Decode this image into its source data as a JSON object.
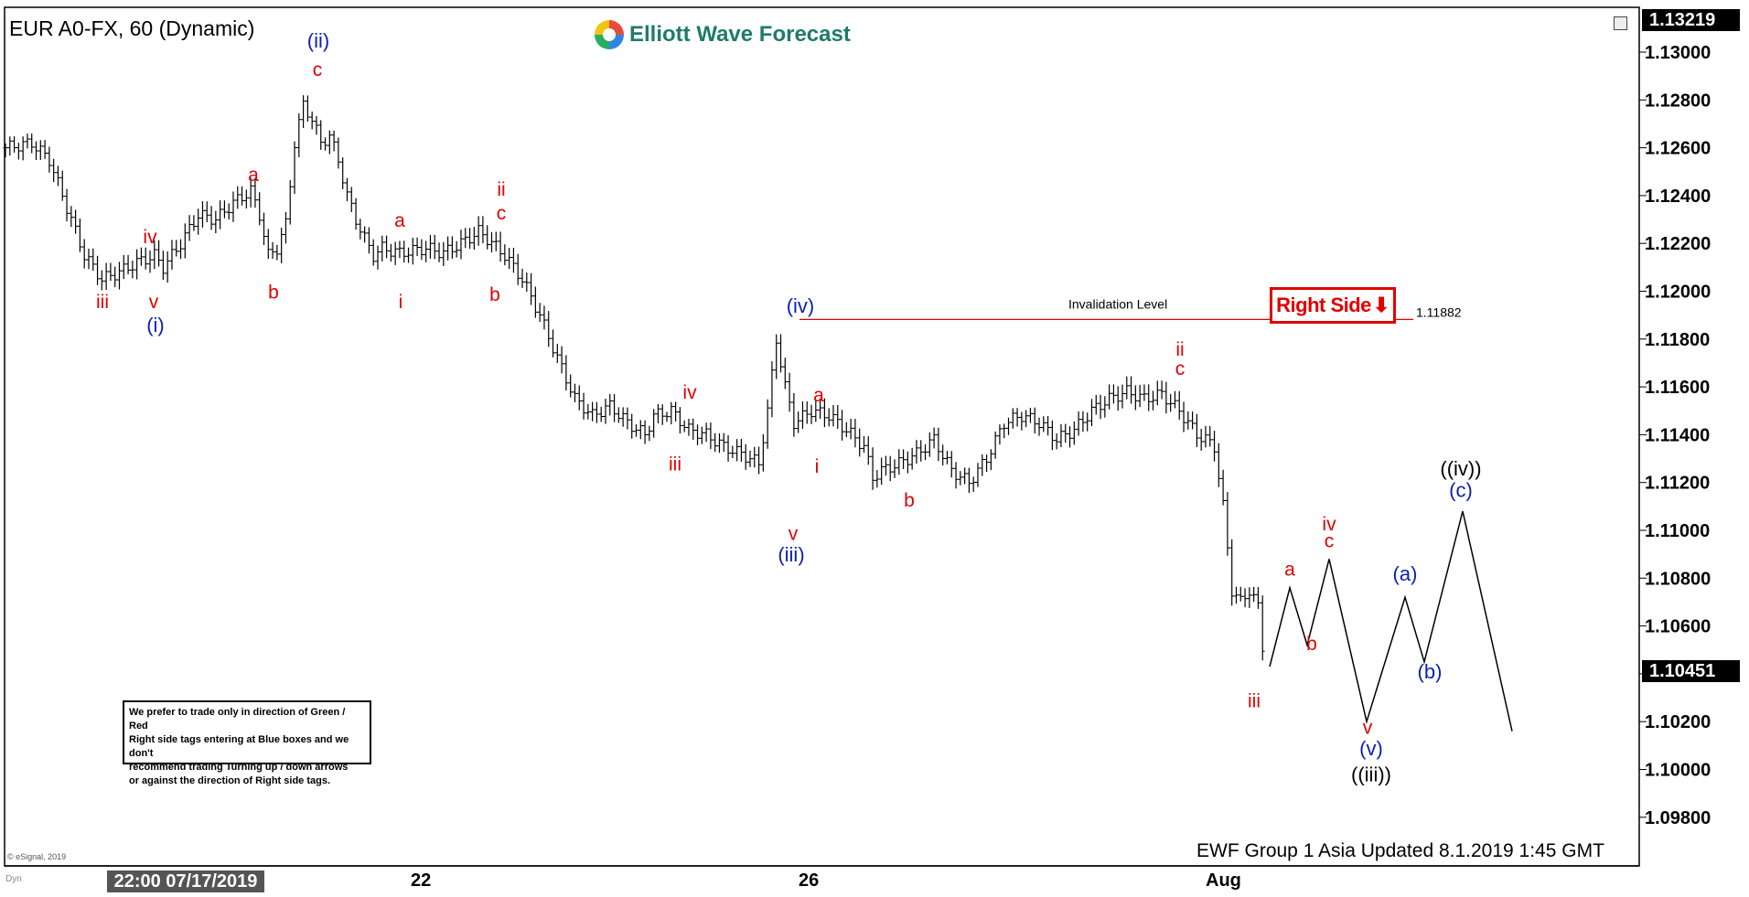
{
  "header": {
    "title": "EUR A0-FX, 60 (Dynamic)",
    "logo_text": "Elliott Wave Forecast"
  },
  "note": {
    "lines": [
      "We prefer to trade only in direction of Green / Red",
      "Right side tags entering at Blue boxes and we don't",
      "recommend trading Turning up / down arrows",
      "or against the direction of Right side tags."
    ]
  },
  "right_side_tag": "Right Side",
  "invalidation": {
    "label": "Invalidation Level",
    "value_label": "1.11882",
    "value": 1.11882
  },
  "footer": "EWF Group 1 Asia Updated 8.1.2019 1:45 GMT",
  "copyright": "© eSignal, 2019",
  "dyn_label": "Dyn",
  "x_axis": {
    "date_box": "22:00 07/17/2019",
    "ticks": [
      {
        "label": "22"
      },
      {
        "label": "26"
      },
      {
        "label": "Aug"
      }
    ]
  },
  "prices": {
    "top": "1.13219",
    "last": "1.10451"
  },
  "colors": {
    "red": "#e00000",
    "blue": "#0a1fb8",
    "black": "#000000"
  },
  "chart_data": {
    "type": "ohlc",
    "instrument": "EUR A0-FX",
    "interval": "60",
    "ylim": [
      1.097,
      1.133
    ],
    "yticks": [
      "1.13000",
      "1.12800",
      "1.12600",
      "1.12400",
      "1.12200",
      "1.12000",
      "1.11800",
      "1.11600",
      "1.11400",
      "1.11200",
      "1.11000",
      "1.10800",
      "1.10600",
      "1.10400",
      "1.10200",
      "1.10000",
      "1.09800"
    ],
    "price_path": [
      [
        0,
        1.126
      ],
      [
        6,
        1.1262
      ],
      [
        10,
        1.1255
      ],
      [
        14,
        1.1235
      ],
      [
        18,
        1.1215
      ],
      [
        22,
        1.1205
      ],
      [
        26,
        1.1208
      ],
      [
        30,
        1.1212
      ],
      [
        34,
        1.1215
      ],
      [
        36,
        1.121
      ],
      [
        40,
        1.122
      ],
      [
        44,
        1.1232
      ],
      [
        48,
        1.123
      ],
      [
        52,
        1.1237
      ],
      [
        56,
        1.1242
      ],
      [
        58,
        1.1232
      ],
      [
        60,
        1.1215
      ],
      [
        62,
        1.1218
      ],
      [
        64,
        1.1228
      ],
      [
        66,
        1.1262
      ],
      [
        68,
        1.1278
      ],
      [
        70,
        1.1272
      ],
      [
        72,
        1.1262
      ],
      [
        74,
        1.1265
      ],
      [
        76,
        1.1255
      ],
      [
        78,
        1.124
      ],
      [
        80,
        1.123
      ],
      [
        82,
        1.1222
      ],
      [
        84,
        1.1215
      ],
      [
        86,
        1.1218
      ],
      [
        90,
        1.1216
      ],
      [
        96,
        1.1218
      ],
      [
        100,
        1.1216
      ],
      [
        104,
        1.122
      ],
      [
        108,
        1.1225
      ],
      [
        110,
        1.1222
      ],
      [
        114,
        1.1215
      ],
      [
        118,
        1.1205
      ],
      [
        122,
        1.119
      ],
      [
        126,
        1.1172
      ],
      [
        130,
        1.1155
      ],
      [
        134,
        1.1148
      ],
      [
        138,
        1.1152
      ],
      [
        142,
        1.1145
      ],
      [
        146,
        1.114
      ],
      [
        148,
        1.1148
      ],
      [
        152,
        1.115
      ],
      [
        156,
        1.1142
      ],
      [
        160,
        1.114
      ],
      [
        164,
        1.1135
      ],
      [
        168,
        1.1132
      ],
      [
        172,
        1.1128
      ],
      [
        174,
        1.115
      ],
      [
        176,
        1.118
      ],
      [
        178,
        1.116
      ],
      [
        180,
        1.1145
      ],
      [
        184,
        1.115
      ],
      [
        188,
        1.1148
      ],
      [
        192,
        1.1142
      ],
      [
        196,
        1.1135
      ],
      [
        198,
        1.1122
      ],
      [
        200,
        1.1125
      ],
      [
        204,
        1.1128
      ],
      [
        208,
        1.1132
      ],
      [
        212,
        1.1138
      ],
      [
        216,
        1.1125
      ],
      [
        220,
        1.112
      ],
      [
        224,
        1.113
      ],
      [
        228,
        1.1145
      ],
      [
        232,
        1.1148
      ],
      [
        236,
        1.1145
      ],
      [
        240,
        1.1138
      ],
      [
        244,
        1.1142
      ],
      [
        248,
        1.115
      ],
      [
        252,
        1.1155
      ],
      [
        256,
        1.1158
      ],
      [
        260,
        1.1155
      ],
      [
        264,
        1.1157
      ],
      [
        268,
        1.115
      ],
      [
        270,
        1.1145
      ],
      [
        272,
        1.114
      ],
      [
        274,
        1.1138
      ],
      [
        276,
        1.1135
      ],
      [
        278,
        1.111
      ],
      [
        280,
        1.1075
      ],
      [
        282,
        1.107
      ],
      [
        284,
        1.1075
      ],
      [
        286,
        1.1068
      ],
      [
        288,
        1.1035
      ]
    ],
    "projection": [
      [
        1.1043
      ],
      [
        1.1076
      ],
      [
        1.1052
      ],
      [
        1.1088
      ],
      [
        1.102
      ],
      [
        1.1072
      ],
      [
        1.1045
      ],
      [
        1.1108
      ],
      [
        1.1016
      ]
    ],
    "annotations": [
      {
        "text": "iii",
        "color": "red",
        "value": 1.1193
      },
      {
        "text": "iv",
        "color": "red",
        "value": 1.122
      },
      {
        "text": "v",
        "color": "red",
        "value": 1.1193
      },
      {
        "text": "(i)",
        "color": "blue",
        "value": 1.1183
      },
      {
        "text": "a",
        "color": "red",
        "value": 1.1246
      },
      {
        "text": "b",
        "color": "red",
        "value": 1.1197
      },
      {
        "text": "(ii)",
        "color": "blue",
        "value": 1.1302
      },
      {
        "text": "c",
        "color": "red",
        "value": 1.129
      },
      {
        "text": "a",
        "color": "red",
        "value": 1.1227
      },
      {
        "text": "i",
        "color": "red",
        "value": 1.1193
      },
      {
        "text": "ii",
        "color": "red",
        "value": 1.124
      },
      {
        "text": "c",
        "color": "red",
        "value": 1.123
      },
      {
        "text": "b",
        "color": "red",
        "value": 1.1196
      },
      {
        "text": "iii",
        "color": "red",
        "value": 1.1125
      },
      {
        "text": "iv",
        "color": "red",
        "value": 1.1155
      },
      {
        "text": "(iv)",
        "color": "blue",
        "value": 1.1191
      },
      {
        "text": "a",
        "color": "red",
        "value": 1.1154
      },
      {
        "text": "i",
        "color": "red",
        "value": 1.1124
      },
      {
        "text": "v",
        "color": "red",
        "value": 1.1096
      },
      {
        "text": "(iii)",
        "color": "blue",
        "value": 1.1087
      },
      {
        "text": "b",
        "color": "red",
        "value": 1.111
      },
      {
        "text": "ii",
        "color": "red",
        "value": 1.1173
      },
      {
        "text": "c",
        "color": "red",
        "value": 1.1165
      },
      {
        "text": "iii",
        "color": "red",
        "value": 1.1026
      },
      {
        "text": "a",
        "color": "red",
        "value": 1.1081
      },
      {
        "text": "b",
        "color": "red",
        "value": 1.105
      },
      {
        "text": "iv",
        "color": "red",
        "value": 1.11
      },
      {
        "text": "c",
        "color": "red",
        "value": 1.1093
      },
      {
        "text": "v",
        "color": "red",
        "value": 1.1015
      },
      {
        "text": "(v)",
        "color": "blue",
        "value": 1.1006
      },
      {
        "text": "((iii))",
        "color": "black",
        "value": 0.9993
      },
      {
        "text": "(a)",
        "color": "blue",
        "value": 1.1079
      },
      {
        "text": "(b)",
        "color": "blue",
        "value": 1.1038
      },
      {
        "text": "((iv))",
        "color": "black",
        "value": 1.1123
      },
      {
        "text": "(c)",
        "color": "blue",
        "value": 1.1114
      }
    ]
  }
}
